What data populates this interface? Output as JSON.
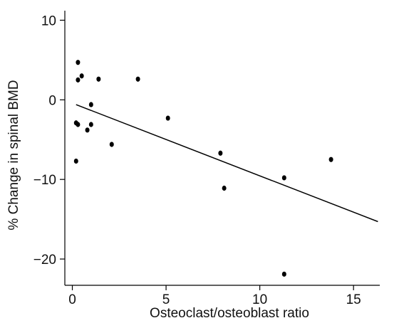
{
  "chart_data": {
    "type": "scatter",
    "title": "",
    "xlabel": "Osteoclast/osteoblast ratio",
    "ylabel": "% Change in spinal BMD",
    "xlim": [
      -0.4,
      16.4
    ],
    "ylim": [
      -23.3,
      11.2
    ],
    "x_ticks": [
      0,
      5,
      10,
      15
    ],
    "y_ticks": [
      10,
      0,
      -10,
      -20
    ],
    "x_tick_labels": [
      "0",
      "5",
      "10",
      "15"
    ],
    "y_tick_labels": [
      "10",
      "0",
      "−10",
      "−20"
    ],
    "grid": false,
    "legend": "none",
    "point_color": "#000000",
    "line_color": "#000000",
    "points": [
      {
        "x": 0.3,
        "y": 4.7
      },
      {
        "x": 0.3,
        "y": 2.5
      },
      {
        "x": 0.5,
        "y": 3.0
      },
      {
        "x": 1.4,
        "y": 2.6
      },
      {
        "x": 3.5,
        "y": 2.6
      },
      {
        "x": 1.0,
        "y": -0.6
      },
      {
        "x": 0.2,
        "y": -2.9
      },
      {
        "x": 0.3,
        "y": -3.1
      },
      {
        "x": 1.0,
        "y": -3.1
      },
      {
        "x": 0.8,
        "y": -3.8
      },
      {
        "x": 5.1,
        "y": -2.3
      },
      {
        "x": 2.1,
        "y": -5.6
      },
      {
        "x": 0.2,
        "y": -7.7
      },
      {
        "x": 7.9,
        "y": -6.7
      },
      {
        "x": 13.8,
        "y": -7.5
      },
      {
        "x": 11.3,
        "y": -9.8
      },
      {
        "x": 8.1,
        "y": -11.1
      },
      {
        "x": 11.3,
        "y": -21.9
      }
    ],
    "regression_line": {
      "x1": 0.2,
      "y1": -0.6,
      "x2": 16.3,
      "y2": -15.3
    }
  }
}
